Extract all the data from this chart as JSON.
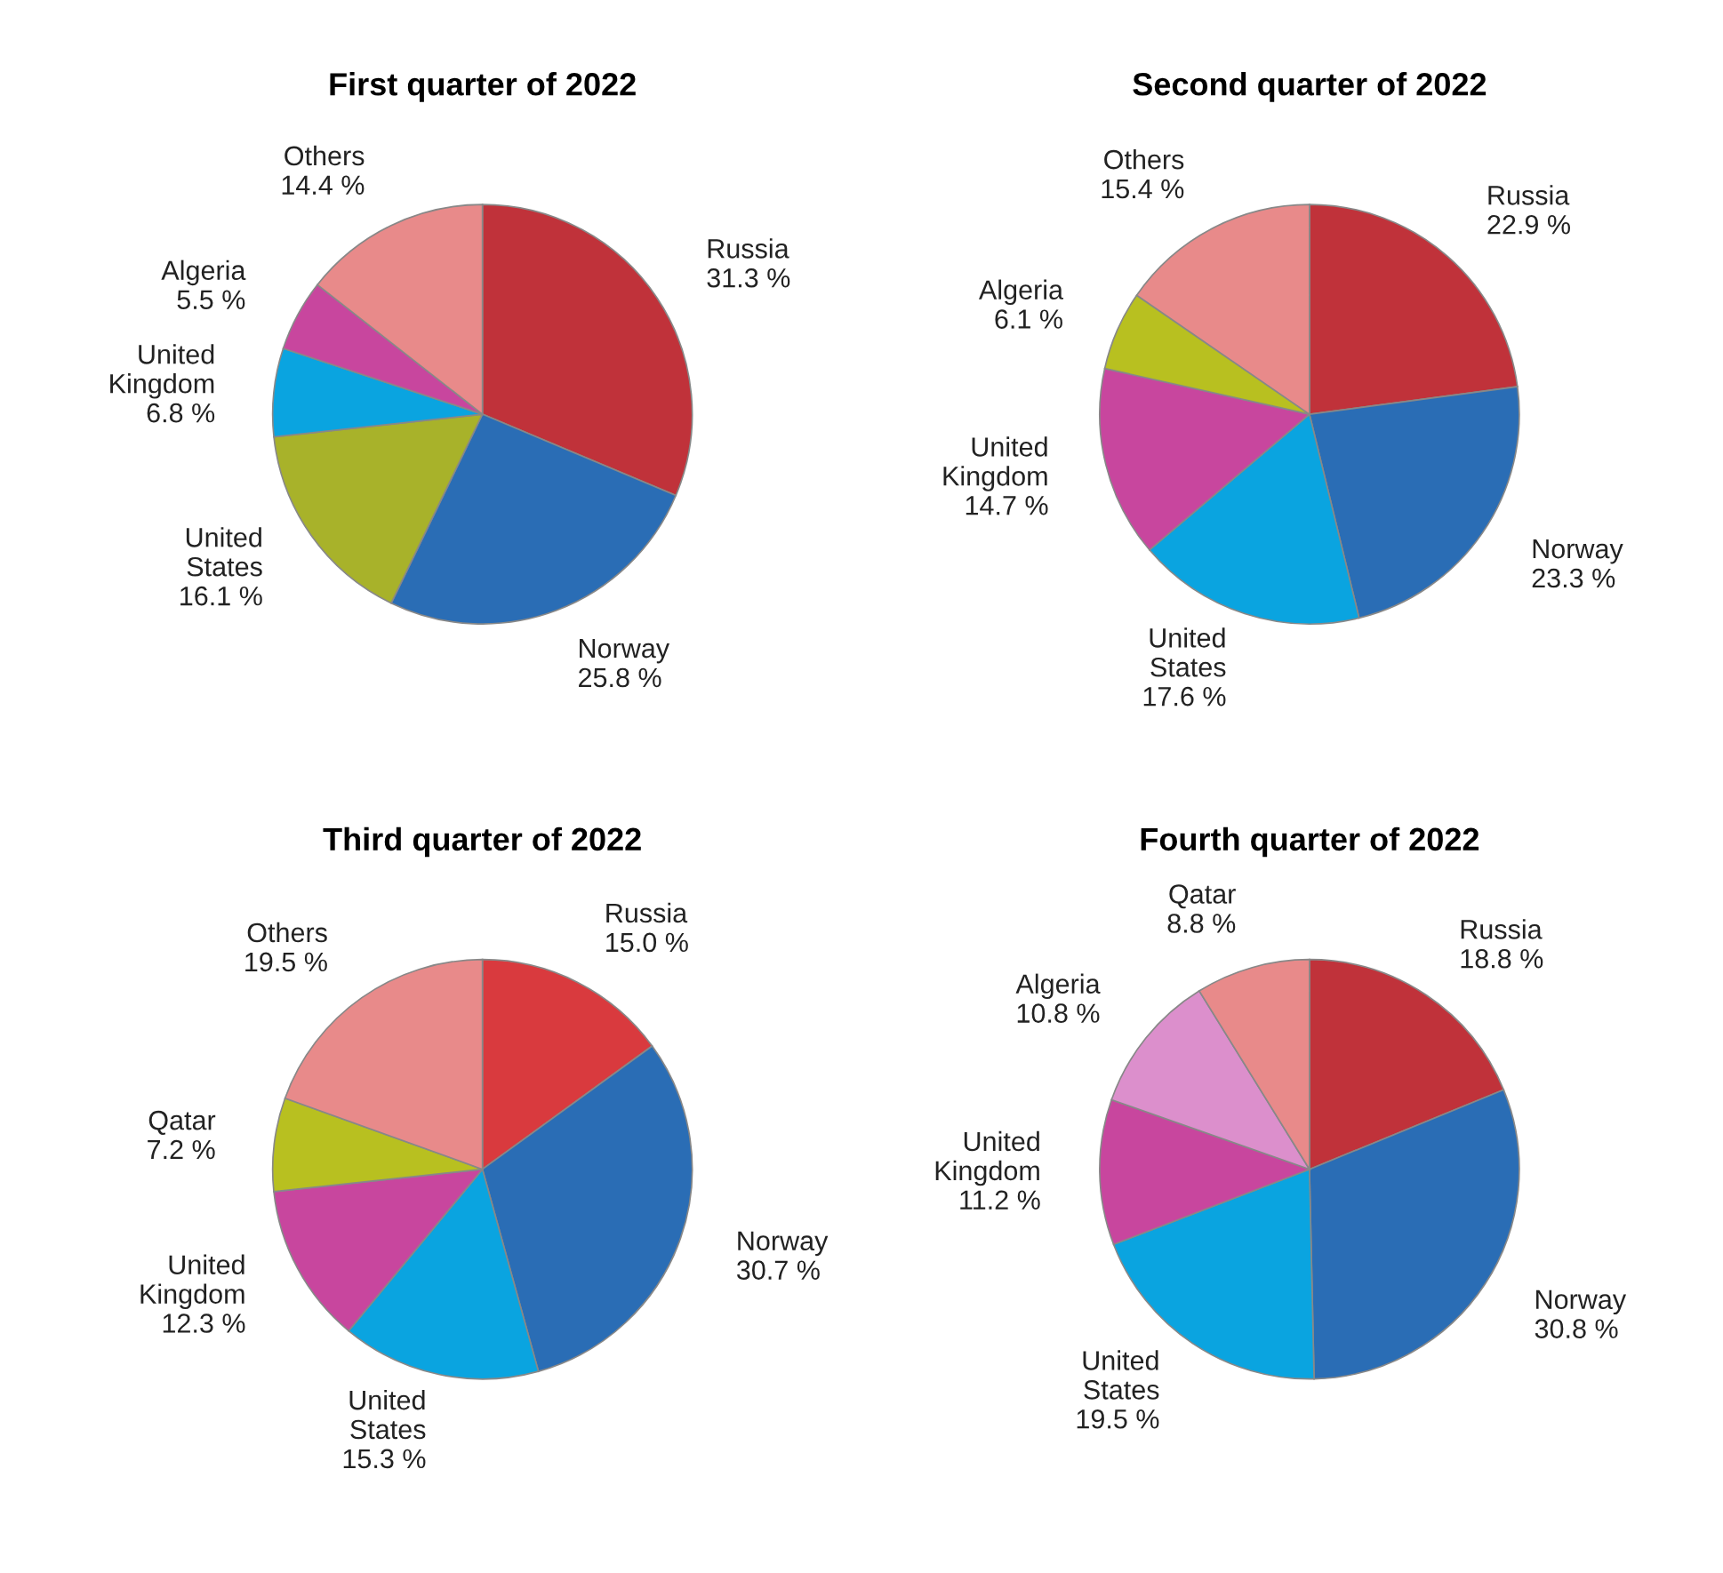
{
  "chart_data": [
    {
      "type": "pie",
      "title": "First quarter of 2022",
      "categories": [
        "Russia",
        "Norway",
        "United\nStates",
        "United\nKingdom",
        "Algeria",
        "Others"
      ],
      "values": [
        31.3,
        25.8,
        16.1,
        6.8,
        5.5,
        14.4
      ],
      "value_labels": [
        "31.3 %",
        "25.8 %",
        "16.1 %",
        "6.8 %",
        "5.5 %",
        "14.4 %"
      ],
      "colors": [
        "#c0323a",
        "#2a6db5",
        "#a8b22a",
        "#0aa4e0",
        "#c8469e",
        "#e88a8a"
      ]
    },
    {
      "type": "pie",
      "title": "Second quarter of 2022",
      "categories": [
        "Russia",
        "Norway",
        "United\nStates",
        "United\nKingdom",
        "Algeria",
        "Others"
      ],
      "values": [
        22.9,
        23.3,
        17.6,
        14.7,
        6.1,
        15.4
      ],
      "value_labels": [
        "22.9 %",
        "23.3 %",
        "17.6 %",
        "14.7 %",
        "6.1 %",
        "15.4 %"
      ],
      "colors": [
        "#c0323a",
        "#2a6db5",
        "#0aa4e0",
        "#c8469e",
        "#b8c020",
        "#e88a8a"
      ]
    },
    {
      "type": "pie",
      "title": "Third quarter of 2022",
      "categories": [
        "Russia",
        "Norway",
        "United\nStates",
        "United\nKingdom",
        "Qatar",
        "Others"
      ],
      "values": [
        15.0,
        30.7,
        15.3,
        12.3,
        7.2,
        19.5
      ],
      "value_labels": [
        "15.0 %",
        "30.7 %",
        "15.3 %",
        "12.3 %",
        "7.2 %",
        "19.5 %"
      ],
      "colors": [
        "#d93a3e",
        "#2a6db5",
        "#0aa4e0",
        "#c8469e",
        "#b8c020",
        "#e88a8a"
      ]
    },
    {
      "type": "pie",
      "title": "Fourth quarter of 2022",
      "categories": [
        "Russia",
        "Norway",
        "United\nStates",
        "United\nKingdom",
        "Algeria",
        "Qatar"
      ],
      "values": [
        18.8,
        30.8,
        19.5,
        11.2,
        10.8,
        8.8
      ],
      "value_labels": [
        "18.8 %",
        "30.8 %",
        "19.5 %",
        "11.2 %",
        "10.8 %",
        "8.8 %"
      ],
      "colors": [
        "#c0323a",
        "#2a6db5",
        "#0aa4e0",
        "#c8469e",
        "#dc8fcc",
        "#e88a8a"
      ]
    }
  ]
}
